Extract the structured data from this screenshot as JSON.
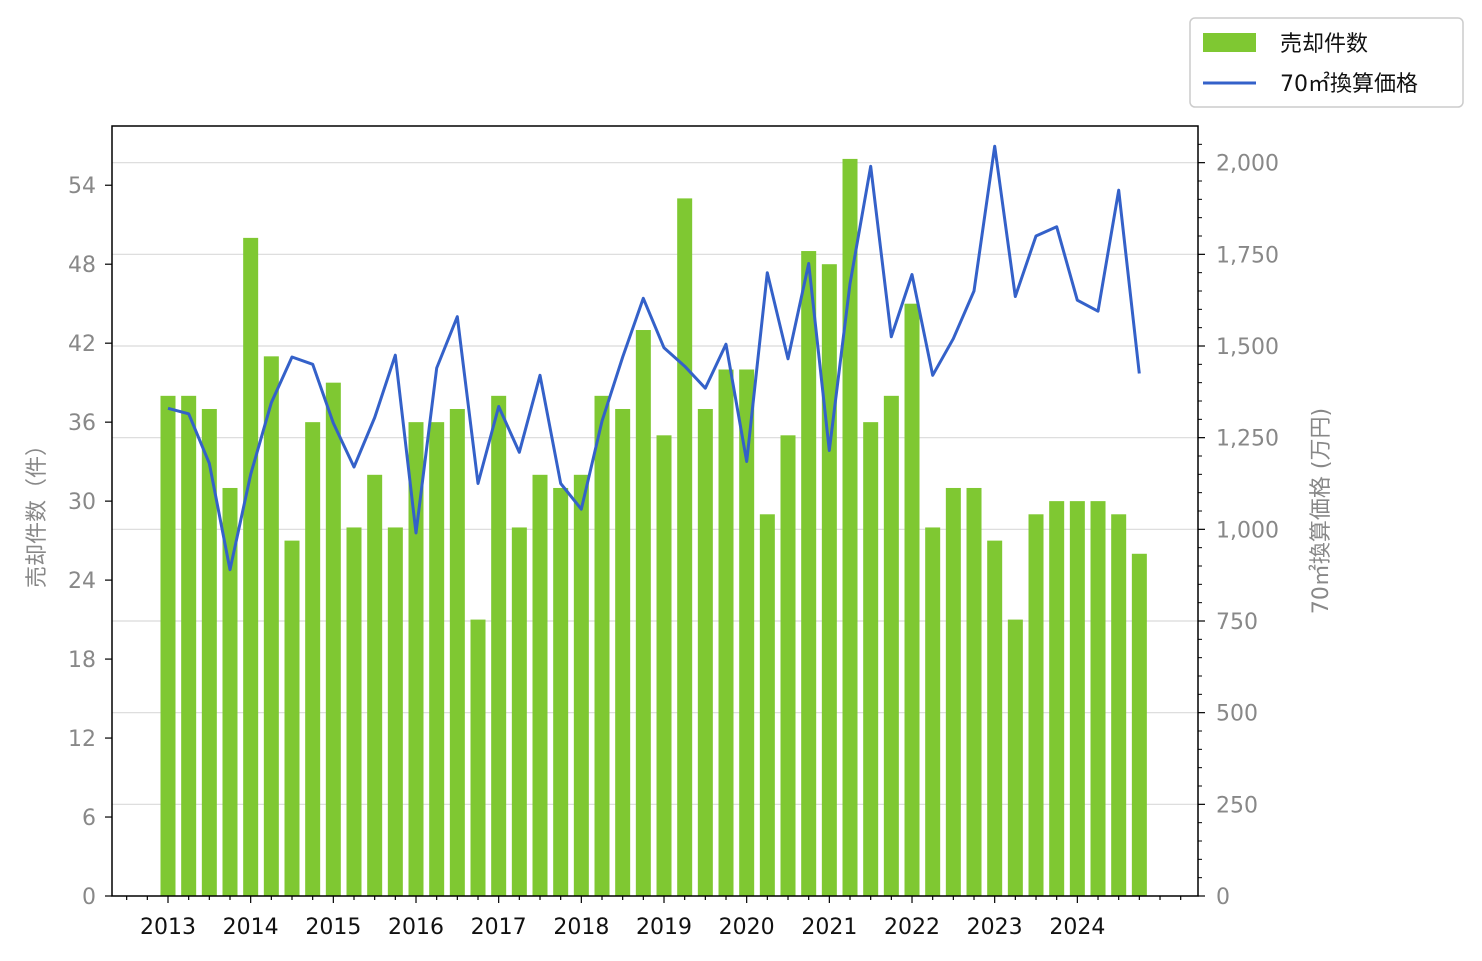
{
  "chart_data": {
    "type": "bar",
    "x_labels": [
      "2013",
      "2014",
      "2015",
      "2016",
      "2017",
      "2018",
      "2019",
      "2020",
      "2021",
      "2022",
      "2023",
      "2024"
    ],
    "ylabel_left": "売却件数（件）",
    "ylabel_right": "70㎡換算価格 (万円)",
    "ylim_left": [
      0,
      58.5
    ],
    "ylim_right": [
      0,
      2100
    ],
    "yticks_left": [
      0,
      6,
      12,
      18,
      24,
      30,
      36,
      42,
      48,
      54
    ],
    "yticks_right": [
      0,
      250,
      500,
      750,
      1000,
      1250,
      1500,
      1750,
      2000
    ],
    "yticks_right_labels": [
      "0",
      "250",
      "500",
      "750",
      "1,000",
      "1,250",
      "1,500",
      "1,750",
      "2,000"
    ],
    "grid": "horizontal (right axis)",
    "legend_position": "top-right",
    "series": [
      {
        "name": "売却件数",
        "type": "bar",
        "axis": "left",
        "color": "#7fc832",
        "values": [
          38,
          38,
          37,
          31,
          50,
          41,
          27,
          36,
          39,
          28,
          32,
          28,
          36,
          36,
          37,
          21,
          38,
          28,
          32,
          31,
          32,
          38,
          37,
          43,
          35,
          53,
          37,
          40,
          40,
          29,
          35,
          49,
          48,
          56,
          36,
          38,
          45,
          28,
          31,
          31,
          27,
          21,
          29,
          30,
          30,
          30,
          29,
          26
        ]
      },
      {
        "name": "70㎡換算価格",
        "type": "line",
        "axis": "right",
        "color": "#3461c9",
        "values": [
          1330,
          1315,
          1180,
          890,
          1150,
          1345,
          1470,
          1450,
          1290,
          1170,
          1305,
          1475,
          990,
          1440,
          1580,
          1125,
          1335,
          1210,
          1420,
          1125,
          1055,
          1295,
          1470,
          1630,
          1495,
          1445,
          1385,
          1505,
          1185,
          1700,
          1465,
          1725,
          1215,
          1670,
          1990,
          1525,
          1695,
          1420,
          1520,
          1650,
          2045,
          1635,
          1800,
          1825,
          1625,
          1595,
          1925,
          1425
        ]
      }
    ]
  }
}
